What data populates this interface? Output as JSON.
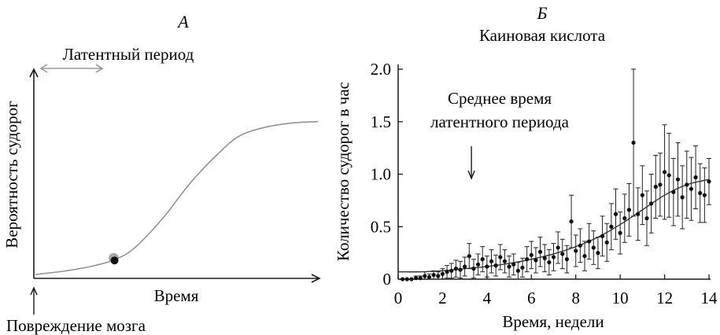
{
  "chart_data": [
    {
      "type": "line",
      "panel_label": "А",
      "title": "",
      "xlabel": "Время",
      "ylabel": "Вероятность судорог",
      "annotations": {
        "latent_period": "Латентный период",
        "brain_injury": "Повреждение мозга"
      },
      "series": [
        {
          "values_description": "sigmoid",
          "x": [
            0,
            0.1,
            0.2,
            0.28,
            0.35,
            0.45,
            0.55,
            0.65,
            0.72,
            0.8,
            0.9,
            1.0
          ],
          "y": [
            0.0,
            0.02,
            0.05,
            0.09,
            0.16,
            0.34,
            0.56,
            0.74,
            0.84,
            0.89,
            0.92,
            0.93
          ]
        }
      ],
      "marker": {
        "x": 0.28,
        "y": 0.09
      }
    },
    {
      "type": "scatter",
      "panel_label": "Б",
      "title": "Каиновая кислота",
      "xlabel": "Время, недели",
      "ylabel": "Количество судорог в час",
      "xlim": [
        0,
        14
      ],
      "ylim": [
        0,
        2.0
      ],
      "xticks": [
        "0",
        "2",
        "4",
        "6",
        "8",
        "10",
        "12",
        "14"
      ],
      "yticks": [
        "0",
        "0.5",
        "1.0",
        "1.5",
        "2.0"
      ],
      "annotation": "Среднее время латентного периода",
      "annotation_x": 3.3,
      "points": [
        [
          0.2,
          0.0,
          0.0
        ],
        [
          0.4,
          0.0,
          0.0
        ],
        [
          0.6,
          0.0,
          0.0
        ],
        [
          0.8,
          0.01,
          0.02
        ],
        [
          1.0,
          0.01,
          0.02
        ],
        [
          1.2,
          0.03,
          0.04
        ],
        [
          1.4,
          0.02,
          0.03
        ],
        [
          1.6,
          0.04,
          0.04
        ],
        [
          1.8,
          0.03,
          0.04
        ],
        [
          2.0,
          0.05,
          0.05
        ],
        [
          2.2,
          0.07,
          0.06
        ],
        [
          2.4,
          0.08,
          0.07
        ],
        [
          2.6,
          0.1,
          0.08
        ],
        [
          2.8,
          0.09,
          0.08
        ],
        [
          3.0,
          0.12,
          0.09
        ],
        [
          3.2,
          0.22,
          0.12
        ],
        [
          3.4,
          0.1,
          0.09
        ],
        [
          3.6,
          0.14,
          0.1
        ],
        [
          3.8,
          0.19,
          0.12
        ],
        [
          4.0,
          0.12,
          0.1
        ],
        [
          4.2,
          0.17,
          0.11
        ],
        [
          4.4,
          0.13,
          0.1
        ],
        [
          4.6,
          0.21,
          0.12
        ],
        [
          4.8,
          0.17,
          0.11
        ],
        [
          5.0,
          0.12,
          0.1
        ],
        [
          5.2,
          0.14,
          0.1
        ],
        [
          5.4,
          0.08,
          0.08
        ],
        [
          5.6,
          0.11,
          0.09
        ],
        [
          5.8,
          0.19,
          0.12
        ],
        [
          6.0,
          0.23,
          0.13
        ],
        [
          6.2,
          0.18,
          0.12
        ],
        [
          6.4,
          0.26,
          0.14
        ],
        [
          6.6,
          0.2,
          0.13
        ],
        [
          6.8,
          0.16,
          0.12
        ],
        [
          7.0,
          0.21,
          0.13
        ],
        [
          7.2,
          0.3,
          0.15
        ],
        [
          7.4,
          0.24,
          0.14
        ],
        [
          7.6,
          0.19,
          0.13
        ],
        [
          7.8,
          0.55,
          0.25
        ],
        [
          8.0,
          0.27,
          0.15
        ],
        [
          8.2,
          0.32,
          0.16
        ],
        [
          8.4,
          0.22,
          0.14
        ],
        [
          8.6,
          0.36,
          0.17
        ],
        [
          8.8,
          0.3,
          0.16
        ],
        [
          9.0,
          0.25,
          0.15
        ],
        [
          9.2,
          0.41,
          0.19
        ],
        [
          9.4,
          0.35,
          0.18
        ],
        [
          9.6,
          0.5,
          0.22
        ],
        [
          9.8,
          0.62,
          0.24
        ],
        [
          10.0,
          0.44,
          0.2
        ],
        [
          10.2,
          0.58,
          0.23
        ],
        [
          10.4,
          0.66,
          0.25
        ],
        [
          10.6,
          1.3,
          0.7
        ],
        [
          10.8,
          0.62,
          0.25
        ],
        [
          11.0,
          0.8,
          0.28
        ],
        [
          11.2,
          0.58,
          0.26
        ],
        [
          11.4,
          0.72,
          0.28
        ],
        [
          11.6,
          0.88,
          0.3
        ],
        [
          11.8,
          0.9,
          0.3
        ],
        [
          12.0,
          1.02,
          0.45
        ],
        [
          12.2,
          0.99,
          0.4
        ],
        [
          12.4,
          0.83,
          0.32
        ],
        [
          12.6,
          0.95,
          0.35
        ],
        [
          12.8,
          0.78,
          0.3
        ],
        [
          13.0,
          0.9,
          0.32
        ],
        [
          13.2,
          0.86,
          0.3
        ],
        [
          13.4,
          0.97,
          0.3
        ],
        [
          13.6,
          0.82,
          0.28
        ],
        [
          13.8,
          0.8,
          0.26
        ],
        [
          14.0,
          0.93,
          0.22
        ]
      ],
      "fit_line": {
        "x": [
          0,
          1,
          2,
          3,
          4,
          5,
          6,
          7,
          8,
          9,
          10,
          11,
          12,
          13,
          14
        ],
        "y": [
          0.07,
          0.07,
          0.08,
          0.1,
          0.12,
          0.15,
          0.19,
          0.24,
          0.31,
          0.4,
          0.52,
          0.66,
          0.8,
          0.9,
          0.95
        ]
      }
    }
  ]
}
